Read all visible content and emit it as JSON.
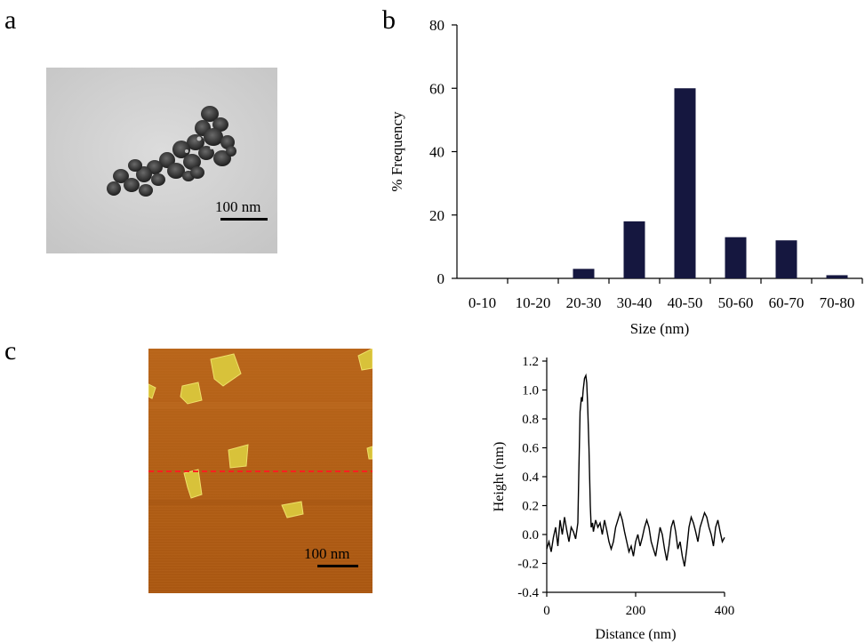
{
  "figure": {
    "panel_labels": [
      "a",
      "b",
      "c"
    ],
    "tem": {
      "scale_bar_label": "100 nm"
    },
    "afm": {
      "scale_bar_label": "100 nm"
    }
  },
  "chart_data": [
    {
      "type": "bar",
      "panel": "b",
      "categories": [
        "0-10",
        "10-20",
        "20-30",
        "30-40",
        "40-50",
        "50-60",
        "60-70",
        "70-80"
      ],
      "values": [
        0,
        0,
        3,
        18,
        60,
        13,
        12,
        1
      ],
      "xlabel": "Size (nm)",
      "ylabel": "% Frequency",
      "ylim": [
        0,
        80
      ],
      "yticks": [
        0,
        20,
        40,
        60,
        80
      ],
      "bar_color": "#15173f",
      "grid": false
    },
    {
      "type": "line",
      "panel": "c",
      "xlabel": "Distance (nm)",
      "ylabel": "Height (nm)",
      "xlim": [
        0,
        400
      ],
      "ylim": [
        -0.4,
        1.2
      ],
      "xticks": [
        0,
        200,
        400
      ],
      "yticks": [
        -0.4,
        -0.2,
        0.0,
        0.2,
        0.4,
        0.6,
        0.8,
        1.0,
        1.2
      ],
      "ytick_labels": [
        "-0.4",
        "-0.2",
        "0.0",
        "0.2",
        "0.4",
        "0.6",
        "0.8",
        "1.0",
        "1.2"
      ],
      "line_color": "#000000",
      "grid": false,
      "series": [
        {
          "x": [
            0,
            5,
            10,
            15,
            20,
            25,
            30,
            35,
            40,
            45,
            50,
            55,
            60,
            65,
            70,
            72,
            75,
            78,
            80,
            82,
            85,
            88,
            90,
            92,
            95,
            98,
            100,
            103,
            105,
            110,
            115,
            120,
            125,
            130,
            135,
            140,
            145,
            150,
            155,
            160,
            165,
            170,
            175,
            180,
            185,
            190,
            195,
            200,
            205,
            210,
            215,
            220,
            225,
            230,
            235,
            240,
            245,
            250,
            255,
            260,
            265,
            270,
            275,
            280,
            285,
            290,
            295,
            300,
            305,
            310,
            315,
            320,
            325,
            330,
            335,
            340,
            345,
            350,
            355,
            360,
            365,
            370,
            375,
            380,
            385,
            390,
            395,
            400
          ],
          "y": [
            -0.1,
            -0.05,
            -0.12,
            -0.02,
            0.05,
            -0.08,
            0.1,
            0.0,
            0.12,
            0.03,
            -0.05,
            0.05,
            0.02,
            -0.03,
            0.08,
            0.4,
            0.85,
            0.95,
            0.92,
            1.0,
            1.08,
            1.1,
            1.05,
            0.9,
            0.6,
            0.2,
            0.05,
            0.08,
            0.02,
            0.1,
            0.05,
            0.08,
            0.0,
            0.1,
            0.03,
            -0.05,
            -0.1,
            -0.05,
            0.05,
            0.1,
            0.15,
            0.1,
            0.02,
            -0.05,
            -0.12,
            -0.08,
            -0.15,
            -0.05,
            0.0,
            -0.08,
            -0.02,
            0.05,
            0.1,
            0.05,
            -0.05,
            -0.1,
            -0.15,
            -0.05,
            0.05,
            0.0,
            -0.1,
            -0.18,
            -0.08,
            0.05,
            0.1,
            0.02,
            -0.1,
            -0.05,
            -0.15,
            -0.22,
            -0.1,
            0.05,
            0.12,
            0.08,
            0.02,
            -0.05,
            0.05,
            0.1,
            0.15,
            0.12,
            0.05,
            0.0,
            -0.08,
            0.05,
            0.1,
            0.02,
            -0.05,
            -0.02
          ]
        }
      ]
    }
  ]
}
